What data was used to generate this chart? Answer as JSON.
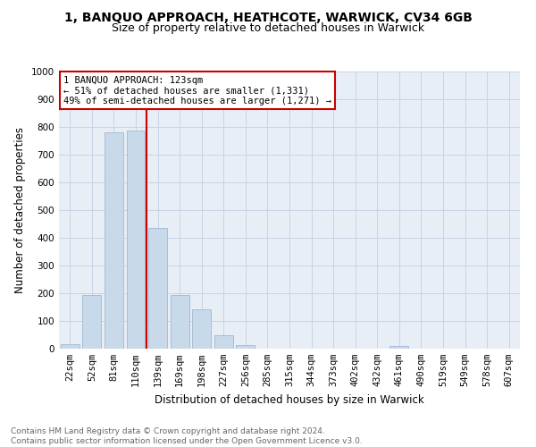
{
  "title": "1, BANQUO APPROACH, HEATHCOTE, WARWICK, CV34 6GB",
  "subtitle": "Size of property relative to detached houses in Warwick",
  "xlabel": "Distribution of detached houses by size in Warwick",
  "ylabel": "Number of detached properties",
  "bar_labels": [
    "22sqm",
    "52sqm",
    "81sqm",
    "110sqm",
    "139sqm",
    "169sqm",
    "198sqm",
    "227sqm",
    "256sqm",
    "285sqm",
    "315sqm",
    "344sqm",
    "373sqm",
    "402sqm",
    "432sqm",
    "461sqm",
    "490sqm",
    "519sqm",
    "549sqm",
    "578sqm",
    "607sqm"
  ],
  "bar_values": [
    15,
    193,
    782,
    787,
    437,
    192,
    141,
    48,
    13,
    0,
    0,
    0,
    0,
    0,
    0,
    10,
    0,
    0,
    0,
    0,
    0
  ],
  "bar_color": "#c8d9ea",
  "bar_edgecolor": "#9fb8d0",
  "vline_x": 3.5,
  "vline_color": "#cc0000",
  "ylim": [
    0,
    1000
  ],
  "yticks": [
    0,
    100,
    200,
    300,
    400,
    500,
    600,
    700,
    800,
    900,
    1000
  ],
  "grid_color": "#c8d4e4",
  "bg_color": "#e8eef6",
  "annotation_title": "1 BANQUO APPROACH: 123sqm",
  "annotation_line1": "← 51% of detached houses are smaller (1,331)",
  "annotation_line2": "49% of semi-detached houses are larger (1,271) →",
  "annotation_box_facecolor": "#ffffff",
  "annotation_box_edgecolor": "#cc0000",
  "footer_line1": "Contains HM Land Registry data © Crown copyright and database right 2024.",
  "footer_line2": "Contains public sector information licensed under the Open Government Licence v3.0.",
  "title_fontsize": 10,
  "subtitle_fontsize": 9,
  "xlabel_fontsize": 8.5,
  "ylabel_fontsize": 8.5,
  "tick_fontsize": 7.5,
  "annotation_fontsize": 7.5,
  "footer_fontsize": 6.5
}
